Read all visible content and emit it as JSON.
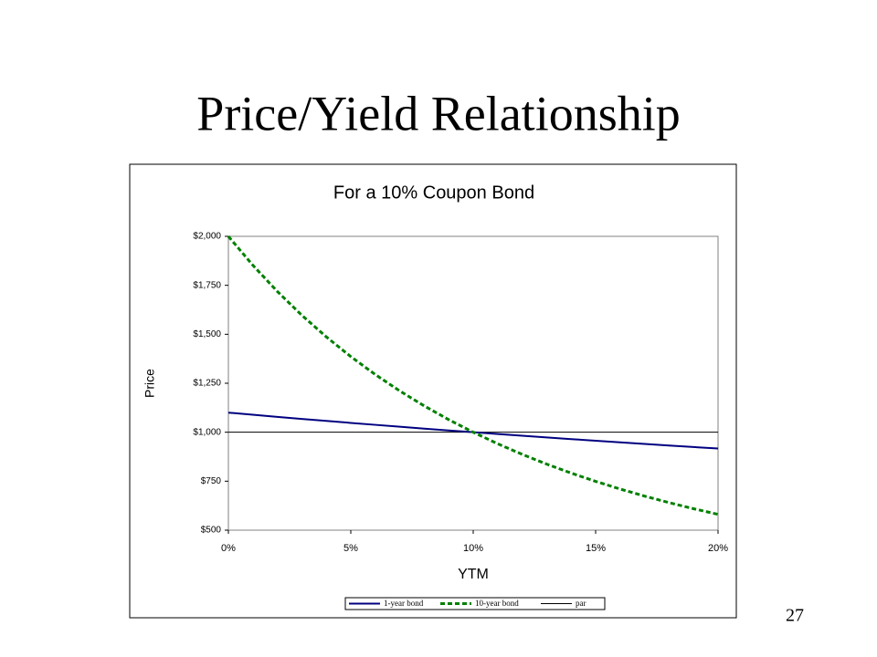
{
  "slide_title": "Price/Yield Relationship",
  "page_number": "27",
  "chart_data": {
    "type": "line",
    "title": "For a 10% Coupon Bond",
    "x_label": "YTM",
    "y_label": "Price",
    "x": [
      0,
      1,
      2,
      3,
      4,
      5,
      6,
      7,
      8,
      9,
      10,
      11,
      12,
      13,
      14,
      15,
      16,
      17,
      18,
      19,
      20
    ],
    "series": [
      {
        "name": "1-year bond",
        "color": "#000080",
        "style": "solid",
        "width": 2,
        "values": [
          1100,
          1089.11,
          1078.43,
          1067.96,
          1057.69,
          1047.62,
          1037.74,
          1028.04,
          1018.52,
          1009.17,
          1000,
          990.99,
          982.14,
          973.45,
          964.91,
          956.52,
          948.28,
          940.17,
          932.2,
          924.37,
          916.67
        ]
      },
      {
        "name": "10-year bond",
        "color": "#008000",
        "style": "dashed",
        "width": 3,
        "values": [
          2000,
          1852.42,
          1718.61,
          1597.11,
          1486.65,
          1386.09,
          1294.4,
          1210.71,
          1134.2,
          1064.18,
          1000,
          941.1,
          886.99,
          837.21,
          791.35,
          749.06,
          710,
          673.9,
          640.47,
          609.49,
          580.76
        ]
      },
      {
        "name": "par",
        "color": "#000000",
        "style": "solid",
        "width": 1,
        "values": [
          1000,
          1000,
          1000,
          1000,
          1000,
          1000,
          1000,
          1000,
          1000,
          1000,
          1000,
          1000,
          1000,
          1000,
          1000,
          1000,
          1000,
          1000,
          1000,
          1000,
          1000
        ]
      }
    ],
    "xlim": [
      0,
      20
    ],
    "xticks": [
      {
        "value": 0,
        "label": "0%"
      },
      {
        "value": 5,
        "label": "5%"
      },
      {
        "value": 10,
        "label": "10%"
      },
      {
        "value": 15,
        "label": "15%"
      },
      {
        "value": 20,
        "label": "20%"
      }
    ],
    "ylim": [
      500,
      2000
    ],
    "yticks": [
      {
        "value": 500,
        "label": "$500"
      },
      {
        "value": 750,
        "label": "$750"
      },
      {
        "value": 1000,
        "label": "$1,000"
      },
      {
        "value": 1250,
        "label": "$1,250"
      },
      {
        "value": 1500,
        "label": "$1,500"
      },
      {
        "value": 1750,
        "label": "$1,750"
      },
      {
        "value": 2000,
        "label": "$2,000"
      }
    ],
    "legend": "bottom"
  }
}
